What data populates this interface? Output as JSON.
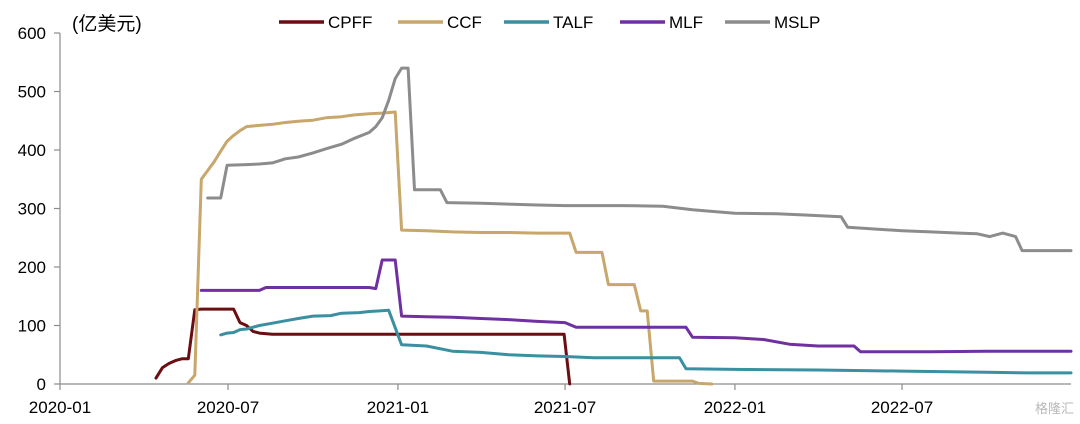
{
  "chart_data": {
    "type": "line",
    "ylabel": "(亿美元)",
    "ylim": [
      0,
      600
    ],
    "yticks": [
      "0",
      "100",
      "200",
      "300",
      "400",
      "500",
      "600"
    ],
    "xlim": [
      "2020-01-01",
      "2022-12-31"
    ],
    "xticks": [
      {
        "date": "2020-01-01",
        "label": "2020-01"
      },
      {
        "date": "2020-07-01",
        "label": "2020-07"
      },
      {
        "date": "2021-01-01",
        "label": "2021-01"
      },
      {
        "date": "2021-07-01",
        "label": "2021-07"
      },
      {
        "date": "2022-01-01",
        "label": "2022-01"
      },
      {
        "date": "2022-07-01",
        "label": "2022-07"
      }
    ],
    "legend_position": "top",
    "grid": false,
    "series": [
      {
        "name": "CPFF",
        "color": "#6b0e12",
        "points": [
          [
            "2020-04-14",
            10
          ],
          [
            "2020-04-21",
            28
          ],
          [
            "2020-04-28",
            35
          ],
          [
            "2020-05-05",
            40
          ],
          [
            "2020-05-12",
            43
          ],
          [
            "2020-05-19",
            43
          ],
          [
            "2020-05-26",
            127
          ],
          [
            "2020-06-02",
            128
          ],
          [
            "2020-06-16",
            128
          ],
          [
            "2020-06-30",
            128
          ],
          [
            "2020-07-07",
            128
          ],
          [
            "2020-07-14",
            105
          ],
          [
            "2020-07-21",
            100
          ],
          [
            "2020-07-28",
            90
          ],
          [
            "2020-08-04",
            87
          ],
          [
            "2020-08-18",
            85
          ],
          [
            "2020-09-01",
            85
          ],
          [
            "2020-10-01",
            85
          ],
          [
            "2020-11-01",
            85
          ],
          [
            "2020-12-01",
            85
          ],
          [
            "2021-01-05",
            85
          ],
          [
            "2021-02-01",
            85
          ],
          [
            "2021-03-01",
            85
          ],
          [
            "2021-04-01",
            85
          ],
          [
            "2021-05-01",
            85
          ],
          [
            "2021-06-01",
            85
          ],
          [
            "2021-06-30",
            85
          ],
          [
            "2021-07-06",
            0
          ]
        ]
      },
      {
        "name": "CCF",
        "color": "#c7a76b",
        "points": [
          [
            "2020-05-19",
            2
          ],
          [
            "2020-05-26",
            15
          ],
          [
            "2020-06-02",
            350
          ],
          [
            "2020-06-09",
            365
          ],
          [
            "2020-06-16",
            380
          ],
          [
            "2020-06-23",
            398
          ],
          [
            "2020-06-30",
            415
          ],
          [
            "2020-07-07",
            425
          ],
          [
            "2020-07-14",
            433
          ],
          [
            "2020-07-21",
            440
          ],
          [
            "2020-08-04",
            442
          ],
          [
            "2020-08-18",
            444
          ],
          [
            "2020-09-01",
            447
          ],
          [
            "2020-09-15",
            449
          ],
          [
            "2020-10-01",
            451
          ],
          [
            "2020-10-15",
            455
          ],
          [
            "2020-11-01",
            457
          ],
          [
            "2020-11-15",
            460
          ],
          [
            "2020-12-01",
            462
          ],
          [
            "2020-12-15",
            463
          ],
          [
            "2020-12-29",
            465
          ],
          [
            "2021-01-05",
            263
          ],
          [
            "2021-02-01",
            262
          ],
          [
            "2021-03-01",
            260
          ],
          [
            "2021-04-01",
            259
          ],
          [
            "2021-05-01",
            259
          ],
          [
            "2021-06-01",
            258
          ],
          [
            "2021-07-06",
            258
          ],
          [
            "2021-07-13",
            225
          ],
          [
            "2021-08-10",
            225
          ],
          [
            "2021-08-17",
            170
          ],
          [
            "2021-09-14",
            170
          ],
          [
            "2021-09-21",
            125
          ],
          [
            "2021-09-28",
            125
          ],
          [
            "2021-10-05",
            5
          ],
          [
            "2021-11-16",
            5
          ],
          [
            "2021-11-23",
            1
          ],
          [
            "2021-12-07",
            0
          ]
        ]
      },
      {
        "name": "TALF",
        "color": "#3a8fa0",
        "points": [
          [
            "2020-06-23",
            84
          ],
          [
            "2020-06-30",
            87
          ],
          [
            "2020-07-07",
            88
          ],
          [
            "2020-07-14",
            93
          ],
          [
            "2020-07-21",
            94
          ],
          [
            "2020-08-04",
            100
          ],
          [
            "2020-08-18",
            104
          ],
          [
            "2020-09-01",
            108
          ],
          [
            "2020-09-15",
            112
          ],
          [
            "2020-10-01",
            116
          ],
          [
            "2020-10-20",
            117
          ],
          [
            "2020-11-01",
            121
          ],
          [
            "2020-11-20",
            122
          ],
          [
            "2020-12-01",
            124
          ],
          [
            "2020-12-22",
            126
          ],
          [
            "2021-01-05",
            67
          ],
          [
            "2021-02-01",
            65
          ],
          [
            "2021-03-01",
            56
          ],
          [
            "2021-04-01",
            54
          ],
          [
            "2021-05-01",
            50
          ],
          [
            "2021-06-01",
            48
          ],
          [
            "2021-07-01",
            47
          ],
          [
            "2021-08-01",
            45
          ],
          [
            "2021-09-01",
            45
          ],
          [
            "2021-10-01",
            45
          ],
          [
            "2021-11-02",
            45
          ],
          [
            "2021-11-09",
            26
          ],
          [
            "2022-01-01",
            25
          ],
          [
            "2022-04-01",
            24
          ],
          [
            "2022-07-01",
            22
          ],
          [
            "2022-10-01",
            20
          ],
          [
            "2022-11-15",
            19
          ],
          [
            "2022-12-31",
            19
          ]
        ]
      },
      {
        "name": "MLF",
        "color": "#7030a0",
        "points": [
          [
            "2020-06-02",
            160
          ],
          [
            "2020-07-01",
            160
          ],
          [
            "2020-08-04",
            160
          ],
          [
            "2020-08-11",
            165
          ],
          [
            "2020-09-01",
            165
          ],
          [
            "2020-10-01",
            165
          ],
          [
            "2020-11-01",
            165
          ],
          [
            "2020-12-01",
            165
          ],
          [
            "2020-12-08",
            163
          ],
          [
            "2020-12-15",
            212
          ],
          [
            "2020-12-29",
            212
          ],
          [
            "2021-01-05",
            116
          ],
          [
            "2021-02-01",
            115
          ],
          [
            "2021-03-01",
            114
          ],
          [
            "2021-04-01",
            112
          ],
          [
            "2021-05-01",
            110
          ],
          [
            "2021-06-01",
            107
          ],
          [
            "2021-07-01",
            105
          ],
          [
            "2021-07-13",
            97
          ],
          [
            "2021-09-01",
            97
          ],
          [
            "2021-10-01",
            97
          ],
          [
            "2021-11-09",
            97
          ],
          [
            "2021-11-16",
            80
          ],
          [
            "2022-01-01",
            79
          ],
          [
            "2022-02-01",
            76
          ],
          [
            "2022-03-01",
            68
          ],
          [
            "2022-04-01",
            65
          ],
          [
            "2022-05-10",
            65
          ],
          [
            "2022-05-17",
            55
          ],
          [
            "2022-08-01",
            55
          ],
          [
            "2022-10-01",
            56
          ],
          [
            "2022-12-31",
            56
          ]
        ]
      },
      {
        "name": "MSLP",
        "color": "#8c8c8c",
        "points": [
          [
            "2020-06-09",
            318
          ],
          [
            "2020-06-23",
            318
          ],
          [
            "2020-06-30",
            374
          ],
          [
            "2020-07-21",
            375
          ],
          [
            "2020-08-04",
            376
          ],
          [
            "2020-08-18",
            378
          ],
          [
            "2020-09-01",
            385
          ],
          [
            "2020-09-15",
            388
          ],
          [
            "2020-10-01",
            395
          ],
          [
            "2020-10-15",
            402
          ],
          [
            "2020-11-01",
            410
          ],
          [
            "2020-11-15",
            420
          ],
          [
            "2020-12-01",
            430
          ],
          [
            "2020-12-08",
            440
          ],
          [
            "2020-12-15",
            455
          ],
          [
            "2020-12-22",
            485
          ],
          [
            "2020-12-29",
            522
          ],
          [
            "2021-01-05",
            540
          ],
          [
            "2021-01-12",
            540
          ],
          [
            "2021-01-19",
            332
          ],
          [
            "2021-02-16",
            332
          ],
          [
            "2021-02-23",
            310
          ],
          [
            "2021-04-01",
            309
          ],
          [
            "2021-06-01",
            306
          ],
          [
            "2021-07-01",
            305
          ],
          [
            "2021-09-01",
            305
          ],
          [
            "2021-10-15",
            304
          ],
          [
            "2021-11-16",
            298
          ],
          [
            "2021-12-07",
            295
          ],
          [
            "2022-01-01",
            292
          ],
          [
            "2022-02-15",
            291
          ],
          [
            "2022-03-15",
            289
          ],
          [
            "2022-04-26",
            286
          ],
          [
            "2022-05-03",
            268
          ],
          [
            "2022-06-01",
            265
          ],
          [
            "2022-07-01",
            262
          ],
          [
            "2022-08-01",
            260
          ],
          [
            "2022-09-01",
            258
          ],
          [
            "2022-09-20",
            257
          ],
          [
            "2022-10-04",
            252
          ],
          [
            "2022-10-18",
            258
          ],
          [
            "2022-11-01",
            252
          ],
          [
            "2022-11-08",
            228
          ],
          [
            "2022-12-31",
            228
          ]
        ]
      }
    ]
  },
  "watermark": "格隆汇"
}
